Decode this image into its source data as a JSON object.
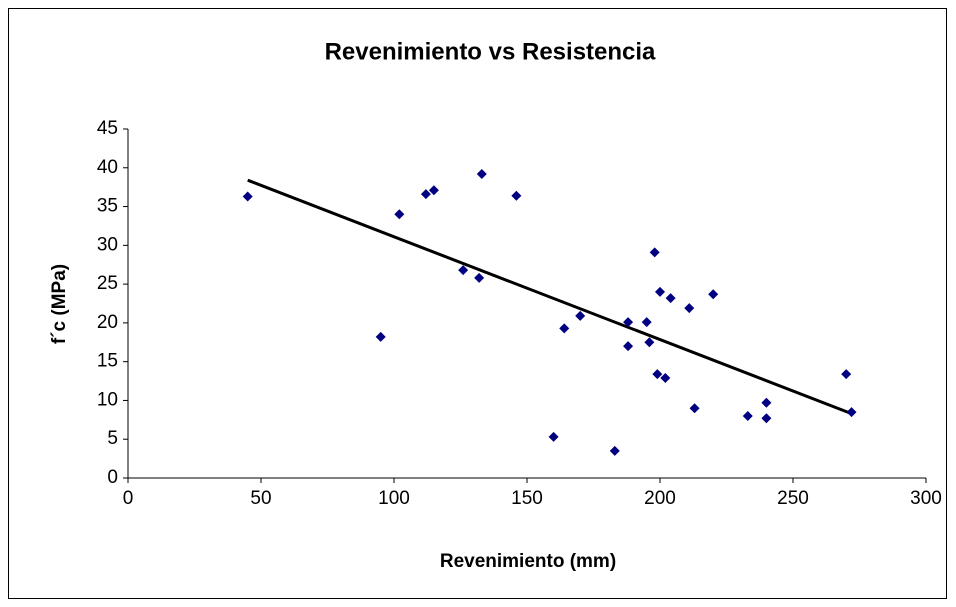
{
  "chart_data": {
    "type": "scatter",
    "title": "Revenimiento vs Resistencia",
    "x_label": "Revenimiento (mm)",
    "y_label": "f´c (MPa)",
    "series": [
      {
        "name": "f´c",
        "color": "#000080",
        "x": [
          45,
          95,
          102,
          112,
          115,
          126,
          132,
          133,
          146,
          160,
          164,
          170,
          183,
          188,
          188,
          195,
          196,
          198,
          199,
          200,
          202,
          204,
          211,
          213,
          220,
          233,
          240,
          240,
          270,
          272
        ],
        "values": [
          36.3,
          18.2,
          34.0,
          36.6,
          37.1,
          26.8,
          25.8,
          39.2,
          36.4,
          5.3,
          19.3,
          20.9,
          3.5,
          20.1,
          17.0,
          20.1,
          17.5,
          29.1,
          13.4,
          24.0,
          12.9,
          23.2,
          21.9,
          9.0,
          23.7,
          8.0,
          9.7,
          7.7,
          13.4,
          8.5
        ]
      }
    ],
    "trendline": {
      "color": "#000000",
      "x": [
        45,
        272
      ],
      "values": [
        38.4,
        8.3
      ]
    },
    "xlim": [
      0,
      300
    ],
    "xticks": [
      0,
      50,
      100,
      150,
      200,
      250,
      300
    ],
    "ylim": [
      0,
      45
    ],
    "yticks": [
      0,
      5,
      10,
      15,
      20,
      25,
      30,
      35,
      40,
      45
    ],
    "grid": false
  }
}
